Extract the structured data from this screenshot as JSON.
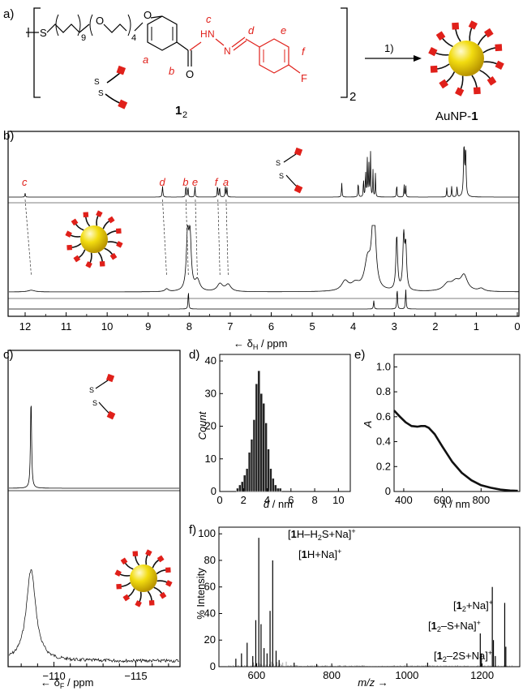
{
  "panels": {
    "a": {
      "label": "a)",
      "compound_label": "1",
      "compound_sub": "2",
      "bracket_sub": "2",
      "arrow_label": "1)",
      "product_label_prefix": "AuNP-",
      "product_label_bold": "1",
      "structure": {
        "s": "S",
        "o1": "O",
        "o2": "O",
        "n9": "9",
        "n4": "4",
        "h": "H",
        "n1": "N",
        "n2": "N",
        "ocarb": "O",
        "f": "F",
        "ss1": "S",
        "ss2": "S",
        "pa": "a",
        "pb": "b",
        "pc": "c",
        "pd": "d",
        "pe": "e",
        "pf": "f"
      }
    },
    "b": {
      "label": "b)",
      "xlabel_prefix": "← δ",
      "xlabel_sub": "H",
      "xlabel_suffix": " / ppm",
      "ticks": [
        "12",
        "11",
        "10",
        "9",
        "8",
        "7",
        "6",
        "5",
        "4",
        "3",
        "2",
        "1",
        "0"
      ],
      "peak_labels": [
        {
          "text": "c",
          "ppm": 12.0
        },
        {
          "text": "d",
          "ppm": 8.65
        },
        {
          "text": "b",
          "ppm": 8.08
        },
        {
          "text": "e",
          "ppm": 7.85
        },
        {
          "text": "f",
          "ppm": 7.3
        },
        {
          "text": "a",
          "ppm": 7.1
        }
      ],
      "spectra": [
        {
          "peaks": [
            [
              12.0,
              0.05,
              0.008
            ],
            [
              8.65,
              0.14,
              0.01
            ],
            [
              8.08,
              0.16,
              0.008
            ],
            [
              8.03,
              0.14,
              0.008
            ],
            [
              7.86,
              0.14,
              0.008
            ],
            [
              7.31,
              0.16,
              0.008
            ],
            [
              7.26,
              0.14,
              0.008
            ],
            [
              7.12,
              0.15,
              0.008
            ],
            [
              7.08,
              0.13,
              0.008
            ],
            [
              4.28,
              0.18,
              0.008
            ],
            [
              3.88,
              0.2,
              0.008
            ],
            [
              3.75,
              0.25,
              0.007
            ],
            [
              3.7,
              0.35,
              0.007
            ],
            [
              3.66,
              0.55,
              0.007
            ],
            [
              3.62,
              0.45,
              0.007
            ],
            [
              3.58,
              0.6,
              0.007
            ],
            [
              3.52,
              0.35,
              0.007
            ],
            [
              3.46,
              0.3,
              0.007
            ],
            [
              2.94,
              0.18,
              0.007
            ],
            [
              2.76,
              0.17,
              0.007
            ],
            [
              2.72,
              0.15,
              0.007
            ],
            [
              1.72,
              0.12,
              0.008
            ],
            [
              1.6,
              0.14,
              0.008
            ],
            [
              1.47,
              0.14,
              0.008
            ],
            [
              1.3,
              0.65,
              0.015
            ],
            [
              1.26,
              0.6,
              0.012
            ]
          ]
        },
        {
          "peaks": [
            [
              11.85,
              0.025,
              0.1
            ],
            [
              8.55,
              0.04,
              0.05
            ],
            [
              8.04,
              0.78,
              0.035
            ],
            [
              7.98,
              0.75,
              0.035
            ],
            [
              7.8,
              0.16,
              0.07
            ],
            [
              7.25,
              0.11,
              0.08
            ],
            [
              7.05,
              0.1,
              0.08
            ],
            [
              4.2,
              0.14,
              0.1
            ],
            [
              3.95,
              0.1,
              0.12
            ],
            [
              3.65,
              0.42,
              0.09
            ],
            [
              3.52,
              0.62,
              0.05
            ],
            [
              3.48,
              0.6,
              0.05
            ],
            [
              2.94,
              0.78,
              0.025
            ],
            [
              2.77,
              0.76,
              0.025
            ],
            [
              2.72,
              0.6,
              0.025
            ],
            [
              1.7,
              0.1,
              0.12
            ],
            [
              1.5,
              0.12,
              0.12
            ],
            [
              1.3,
              0.22,
              0.1
            ],
            [
              0.88,
              0.04,
              0.08
            ]
          ]
        },
        {
          "peaks": [
            [
              8.02,
              0.85,
              0.01
            ],
            [
              3.5,
              0.4,
              0.01
            ],
            [
              2.93,
              1.0,
              0.01
            ],
            [
              2.72,
              0.95,
              0.01
            ]
          ]
        }
      ]
    },
    "c": {
      "label": "c)",
      "xlabel_prefix": "← δ",
      "xlabel_sub": "F",
      "xlabel_suffix": " / ppm",
      "ticks": [
        "−110",
        "−115"
      ],
      "spectra": [
        {
          "peaks": [
            [
              -108.6,
              1.0,
              0.04
            ]
          ]
        },
        {
          "peaks": [
            [
              -108.6,
              0.9,
              0.35
            ]
          ]
        }
      ]
    },
    "d": {
      "label": "d)",
      "xlabel_prefix": "",
      "xlabel_var": "d",
      "xlabel_suffix": " / nm",
      "ylabel": "Count",
      "xticks": [
        "0",
        "2",
        "4",
        "6",
        "8",
        "10"
      ],
      "yticks": [
        "0",
        "10",
        "20",
        "30",
        "40"
      ]
    },
    "e": {
      "label": "e)",
      "ylabel": "A",
      "xlabel_prefix": "λ / nm",
      "xticks": [
        "400",
        "600",
        "800"
      ],
      "yticks": [
        "0",
        "0.2",
        "0.4",
        "0.6",
        "0.8",
        "1.0"
      ]
    },
    "f": {
      "label": "f)",
      "ylabel": "% Intensity",
      "xlabel_var": "m/z",
      "xlabel_suffix": " →",
      "xticks": [
        "600",
        "800",
        "1000",
        "1200"
      ],
      "yticks": [
        "0",
        "20",
        "40",
        "60",
        "80",
        "100"
      ],
      "annotations": [
        {
          "pre": "[",
          "bold": "1",
          "post": "H–H",
          "sub": "2",
          "post2": "S+Na]",
          "sup": "+"
        },
        {
          "pre": "[",
          "bold": "1",
          "post": "H+Na]",
          "sub": "",
          "post2": "",
          "sup": "+"
        },
        {
          "pre": "[",
          "bold": "1",
          "post": "",
          "sub": "2",
          "post2": "+Na]",
          "sup": "+"
        },
        {
          "pre": "[",
          "bold": "1",
          "post": "",
          "sub": "2",
          "post2": "–S+Na]",
          "sup": "+"
        },
        {
          "pre": "[",
          "bold": "1",
          "post": "",
          "sub": "2",
          "post2": "–2S+Na]",
          "sup": "+"
        }
      ]
    }
  },
  "chart_data": [
    {
      "type": "histogram",
      "panel": "d",
      "xlabel": "d / nm",
      "ylabel": "Count",
      "xlim": [
        0,
        11
      ],
      "ylim": [
        0,
        42
      ],
      "bin_width": 0.2,
      "bins_start": [
        1.4,
        1.6,
        1.8,
        2.0,
        2.2,
        2.4,
        2.6,
        2.8,
        3.0,
        3.2,
        3.4,
        3.6,
        3.8,
        4.0,
        4.2,
        4.4,
        4.6,
        4.8,
        5.0
      ],
      "counts": [
        1,
        2,
        3,
        5,
        7,
        12,
        16,
        22,
        33,
        37,
        30,
        27,
        21,
        13,
        7,
        4,
        2,
        1,
        1
      ]
    },
    {
      "type": "line",
      "panel": "e",
      "xlabel": "λ / nm",
      "ylabel": "A",
      "xlim": [
        350,
        1000
      ],
      "ylim": [
        0,
        1.1
      ],
      "x": [
        350,
        380,
        410,
        440,
        470,
        490,
        510,
        530,
        560,
        600,
        650,
        700,
        750,
        800,
        850,
        900,
        950,
        990
      ],
      "y": [
        0.65,
        0.6,
        0.555,
        0.525,
        0.52,
        0.525,
        0.525,
        0.51,
        0.46,
        0.36,
        0.24,
        0.15,
        0.09,
        0.05,
        0.03,
        0.015,
        0.008,
        0.005
      ]
    },
    {
      "type": "bar",
      "panel": "f",
      "xlabel": "m/z",
      "ylabel": "% Intensity",
      "xlim": [
        500,
        1300
      ],
      "ylim": [
        0,
        105
      ],
      "x": [
        545,
        560,
        575,
        590,
        598,
        606,
        612,
        620,
        628,
        636,
        643,
        652,
        660,
        700,
        760,
        1055,
        1195,
        1198,
        1227,
        1230,
        1235,
        1260,
        1263
      ],
      "values": [
        6,
        10,
        18,
        8,
        35,
        97,
        32,
        14,
        10,
        42,
        80,
        12,
        5,
        3,
        2,
        3,
        25,
        10,
        60,
        20,
        8,
        48,
        15
      ]
    }
  ]
}
